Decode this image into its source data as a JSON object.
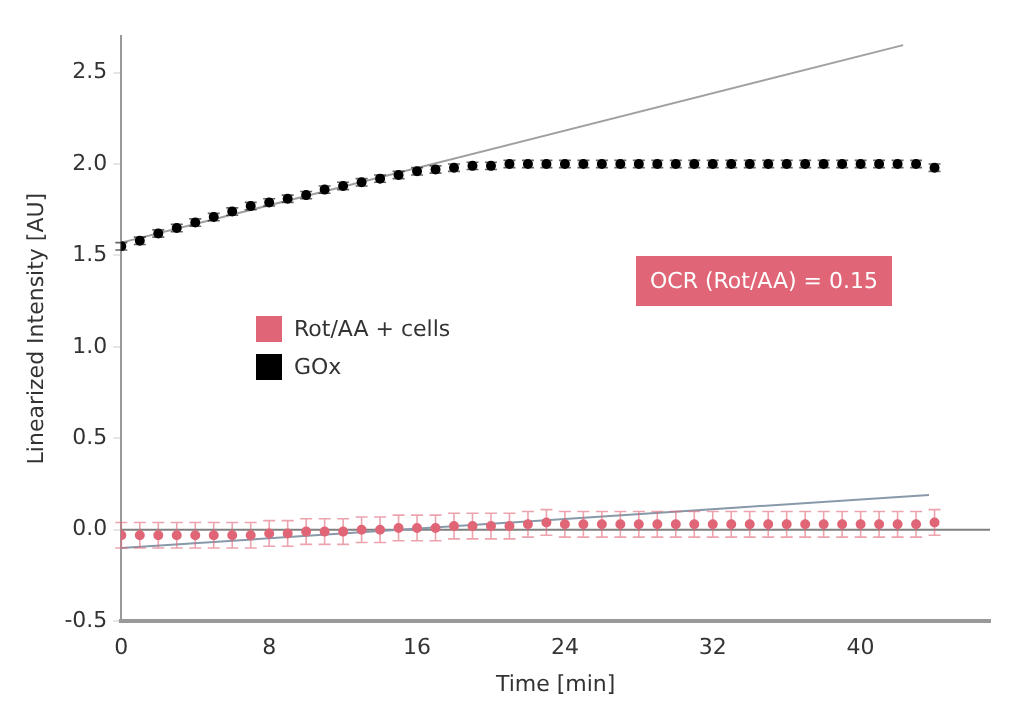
{
  "chart_data": {
    "type": "scatter",
    "xlabel": "Time [min]",
    "ylabel": "Linearized Intensity [AU]",
    "x": [
      0,
      1,
      2,
      3,
      4,
      5,
      6,
      7,
      8,
      9,
      10,
      11,
      12,
      13,
      14,
      15,
      16,
      17,
      18,
      19,
      20,
      21,
      22,
      23,
      24,
      25,
      26,
      27,
      28,
      29,
      30,
      31,
      32,
      33,
      34,
      35,
      36,
      37,
      38,
      39,
      40,
      41,
      42,
      43,
      44
    ],
    "xlim": [
      0,
      47
    ],
    "xticks": [
      0,
      8,
      16,
      24,
      32,
      40
    ],
    "ylim": [
      -0.5,
      2.7
    ],
    "yticks": [
      -0.5,
      {
        "value": 0,
        "label": "0.0"
      },
      0.5,
      {
        "value": 1,
        "label": "1.0"
      },
      1.5,
      {
        "value": 2,
        "label": "2.0"
      },
      2.5
    ],
    "legend": "left",
    "grid": false,
    "ref_lines": [
      {
        "axis": "y",
        "value": 0,
        "color": "#808080"
      }
    ],
    "annotations": [
      "OCR (Rot/AA) = 0.15"
    ],
    "series": [
      {
        "name": "Rot/AA + cells",
        "color": "#e06677",
        "marker": "circle",
        "values": [
          -0.03,
          -0.03,
          -0.03,
          -0.03,
          -0.03,
          -0.03,
          -0.03,
          -0.03,
          -0.02,
          -0.02,
          -0.01,
          -0.01,
          -0.01,
          0.0,
          0.0,
          0.01,
          0.01,
          0.01,
          0.02,
          0.02,
          0.02,
          0.02,
          0.03,
          0.04,
          0.03,
          0.03,
          0.03,
          0.03,
          0.03,
          0.03,
          0.03,
          0.03,
          0.03,
          0.03,
          0.03,
          0.03,
          0.03,
          0.03,
          0.03,
          0.03,
          0.03,
          0.03,
          0.03,
          0.03,
          0.04
        ],
        "errors": [
          0.07,
          0.07,
          0.07,
          0.07,
          0.07,
          0.07,
          0.07,
          0.07,
          0.07,
          0.07,
          0.07,
          0.07,
          0.07,
          0.07,
          0.07,
          0.07,
          0.07,
          0.07,
          0.07,
          0.07,
          0.07,
          0.07,
          0.07,
          0.07,
          0.07,
          0.07,
          0.07,
          0.07,
          0.07,
          0.07,
          0.07,
          0.07,
          0.07,
          0.07,
          0.07,
          0.07,
          0.07,
          0.07,
          0.07,
          0.07,
          0.07,
          0.07,
          0.07,
          0.07,
          0.07
        ]
      },
      {
        "name": "GOx",
        "color": "#000000",
        "marker": "circle",
        "values": [
          1.55,
          1.58,
          1.62,
          1.65,
          1.68,
          1.71,
          1.74,
          1.77,
          1.79,
          1.81,
          1.83,
          1.86,
          1.88,
          1.9,
          1.92,
          1.94,
          1.96,
          1.97,
          1.98,
          1.99,
          1.99,
          2.0,
          2.0,
          2.0,
          2.0,
          2.0,
          2.0,
          2.0,
          2.0,
          2.0,
          2.0,
          2.0,
          2.0,
          2.0,
          2.0,
          2.0,
          2.0,
          2.0,
          2.0,
          2.0,
          2.0,
          2.0,
          2.0,
          2.0,
          1.98
        ],
        "errors": [
          0.02,
          0.02,
          0.02,
          0.02,
          0.02,
          0.02,
          0.02,
          0.02,
          0.02,
          0.02,
          0.02,
          0.02,
          0.02,
          0.02,
          0.02,
          0.02,
          0.02,
          0.02,
          0.02,
          0.02,
          0.02,
          0.02,
          0.02,
          0.02,
          0.02,
          0.02,
          0.02,
          0.02,
          0.02,
          0.02,
          0.02,
          0.02,
          0.02,
          0.02,
          0.02,
          0.02,
          0.02,
          0.02,
          0.02,
          0.02,
          0.02,
          0.02,
          0.02,
          0.02,
          0.02
        ]
      },
      {
        "type": "line",
        "color": "#a0a0a0",
        "x": [
          0,
          42.3
        ],
        "values": [
          1.57,
          2.65
        ],
        "marker": "none"
      },
      {
        "type": "line",
        "color": "#8899aa",
        "x": [
          0,
          43.7
        ],
        "values": [
          -0.1,
          0.19
        ],
        "marker": "none"
      }
    ]
  }
}
